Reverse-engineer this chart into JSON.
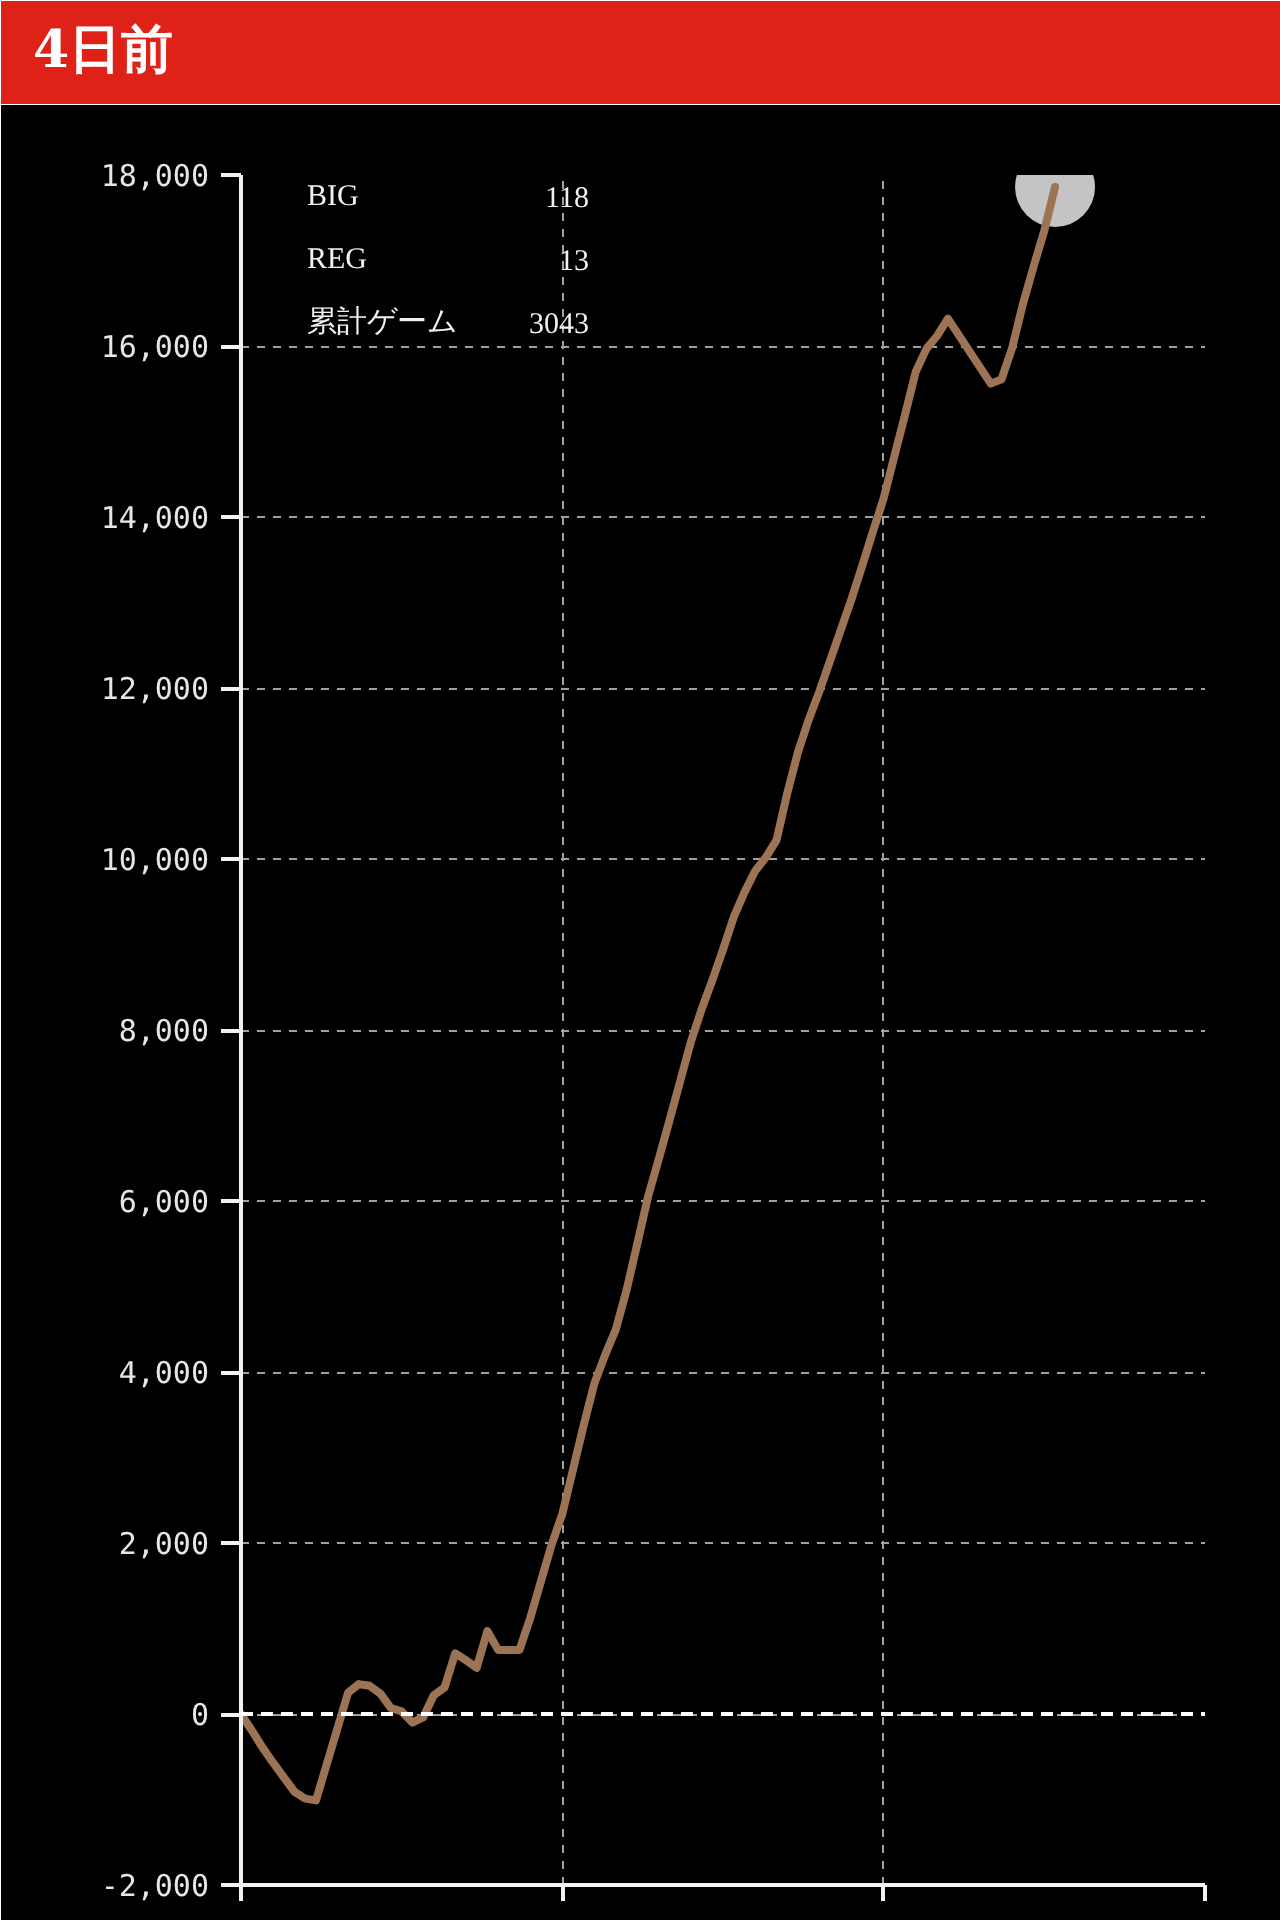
{
  "chart_data": {
    "type": "line",
    "title": "4日前",
    "categories": [
      null,
      null,
      null,
      null,
      null,
      null,
      null,
      null,
      null,
      null,
      null,
      null,
      null,
      null,
      null,
      null,
      null,
      null,
      null,
      null,
      null,
      null,
      null,
      null,
      null,
      null,
      null,
      null,
      null,
      null,
      null,
      null,
      null,
      null,
      null,
      null,
      null,
      null,
      null,
      null,
      null,
      null,
      null,
      null,
      null,
      null,
      null,
      null,
      null,
      null,
      null,
      null,
      null,
      null,
      null,
      null,
      null,
      null,
      null,
      null,
      null,
      null,
      null,
      null,
      null,
      null,
      null,
      null,
      null,
      null,
      null,
      null,
      null,
      null,
      null,
      null,
      null,
      null,
      null,
      null,
      null,
      null,
      null,
      null,
      null,
      null,
      null,
      null,
      null,
      null,
      null
    ],
    "series": [
      {
        "type": "scatter",
        "marker": "circle",
        "color": "#c4c4c4",
        "values": [
          null,
          null,
          null,
          null,
          null,
          null,
          null,
          null,
          null,
          null,
          null,
          null,
          null,
          null,
          null,
          null,
          null,
          null,
          null,
          null,
          null,
          null,
          null,
          null,
          null,
          null,
          null,
          null,
          null,
          null,
          null,
          null,
          null,
          null,
          null,
          null,
          null,
          null,
          null,
          null,
          null,
          null,
          null,
          null,
          null,
          null,
          null,
          null,
          null,
          null,
          null,
          null,
          null,
          null,
          null,
          null,
          null,
          null,
          null,
          null,
          null,
          null,
          null,
          null,
          null,
          null,
          null,
          null,
          null,
          null,
          null,
          null,
          null,
          null,
          null,
          null,
          17860,
          null,
          null,
          null,
          null,
          null,
          null,
          null,
          null,
          null,
          null,
          null,
          null,
          null,
          null
        ]
      },
      {
        "color": "#9c7455",
        "values": [
          0,
          -190,
          -390,
          -570,
          -740,
          -910,
          -990,
          -1010,
          -590,
          -170,
          250,
          350,
          330,
          240,
          70,
          30,
          -100,
          -40,
          220,
          310,
          710,
          630,
          540,
          970,
          750,
          750,
          750,
          1120,
          1550,
          1980,
          2340,
          2860,
          3380,
          3870,
          4200,
          4500,
          4960,
          5500,
          6050,
          6490,
          6940,
          7400,
          7860,
          8240,
          8580,
          8940,
          9320,
          9610,
          9860,
          10020,
          10220,
          10770,
          11250,
          11630,
          11960,
          12320,
          12680,
          13040,
          13430,
          13830,
          14220,
          14710,
          15200,
          15700,
          15970,
          16120,
          16320,
          16130,
          15940,
          15750,
          15560,
          15610,
          15980,
          16490,
          16930,
          17350,
          17860,
          null,
          null,
          null,
          null,
          null,
          null,
          null,
          null,
          null,
          null,
          null,
          null,
          null,
          null
        ]
      }
    ],
    "ylim": [
      -2000,
      18000
    ],
    "yticks": [
      {
        "value": -2000,
        "label": "-2,000"
      },
      0,
      {
        "value": 2000,
        "label": "2,000"
      },
      {
        "value": 4000,
        "label": "4,000"
      },
      {
        "value": 6000,
        "label": "6,000"
      },
      {
        "value": 8000,
        "label": "8,000"
      },
      {
        "value": 10000,
        "label": "10,000"
      },
      {
        "value": 12000,
        "label": "12,000"
      },
      {
        "value": 14000,
        "label": "14,000"
      },
      {
        "value": 16000,
        "label": "16,000"
      },
      {
        "value": 18000,
        "label": "18,000"
      }
    ],
    "tick_labels": "y",
    "grid": true,
    "ref_lines": [
      {
        "axis": "y",
        "value": 0,
        "color": "#ffffff",
        "line_style": "dashed"
      }
    ],
    "annotations": [
      "BIG 118",
      "REG 13",
      "累計ゲーム 3043"
    ]
  }
}
